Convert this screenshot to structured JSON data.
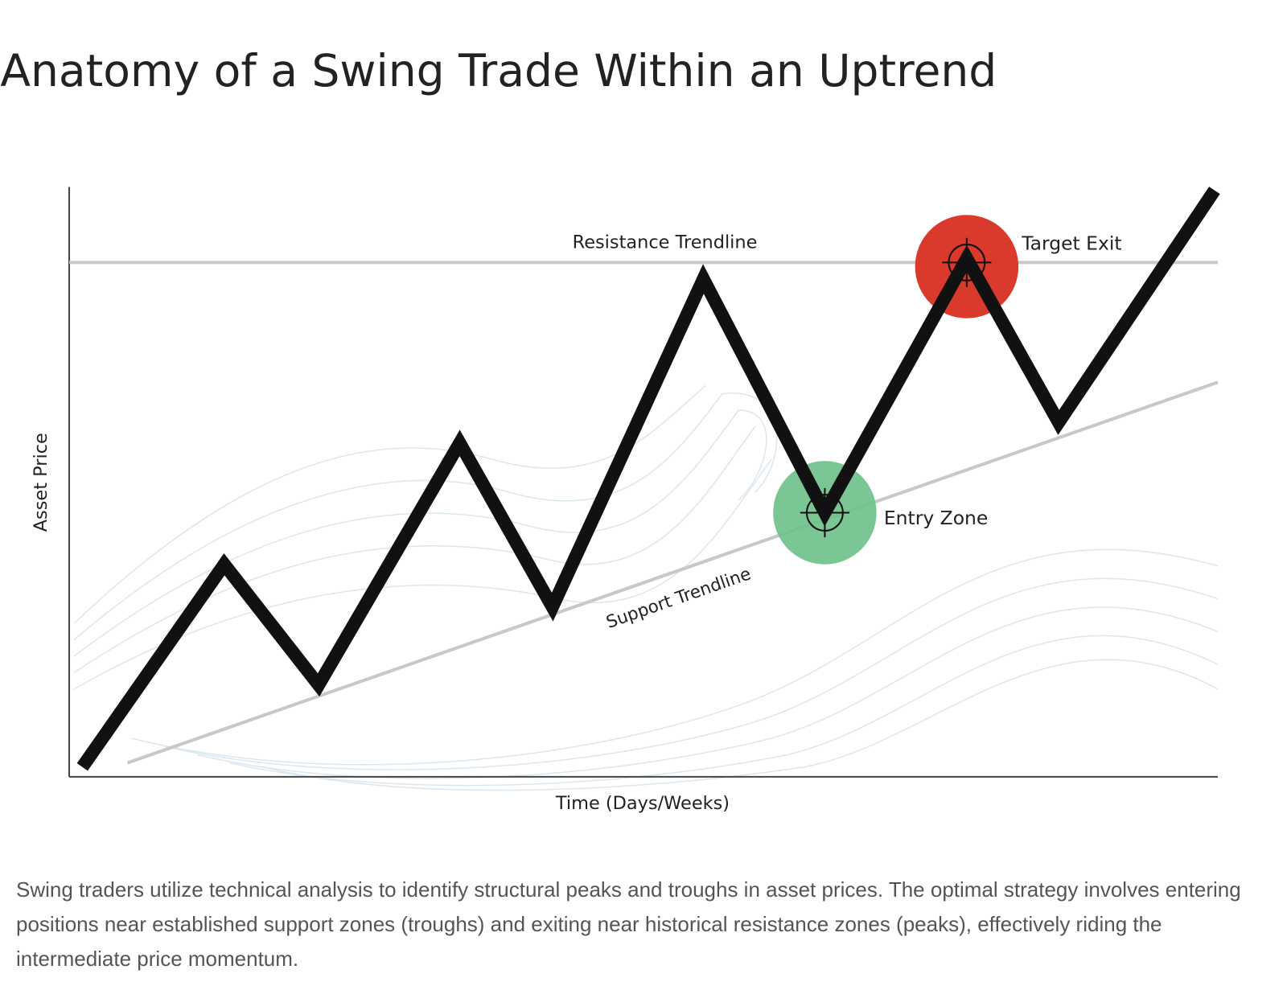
{
  "header": {
    "title": "Anatomy of a Swing Trade Within an Uptrend"
  },
  "diagram": {
    "y_axis_label": "Asset Price",
    "x_axis_label": "Time (Days/Weeks)",
    "resistance_label": "Resistance Trendline",
    "support_label": "Support Trendline",
    "entry_label": "Entry Zone",
    "exit_label": "Target Exit"
  },
  "caption": "Swing traders utilize technical analysis to identify structural peaks and troughs in asset prices. The optimal strategy involves entering positions near established support zones (troughs) and exiting near historical resistance zones (peaks), effectively riding the intermediate price momentum."
}
